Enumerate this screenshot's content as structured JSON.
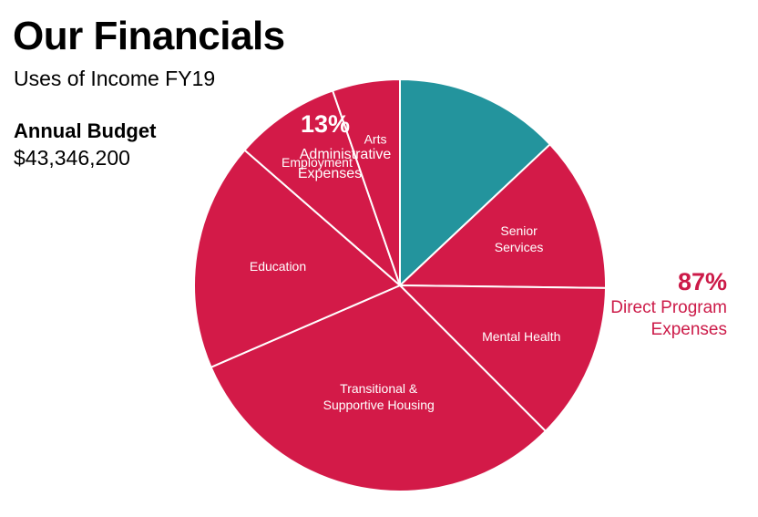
{
  "title": "Our Financials",
  "subtitle": "Uses of Income FY19",
  "budget": {
    "label": "Annual Budget",
    "value": "$43,346,200"
  },
  "direct_program": {
    "percent": "87%",
    "line1": "Direct Program",
    "line2": "Expenses",
    "color": "#d31a48"
  },
  "administrative": {
    "percent": "13%",
    "line1": "Administrative",
    "line2": "Expenses",
    "color": "#23949d"
  },
  "chart_data": {
    "type": "pie",
    "slices": [
      {
        "name": "Administrative Expenses",
        "value": 13.0,
        "color": "#23949d",
        "label_lines": []
      },
      {
        "name": "Senior Services",
        "value": 12.2,
        "color": "#d31a48",
        "label_lines": [
          "Senior",
          "Services"
        ]
      },
      {
        "name": "Mental Health",
        "value": 12.3,
        "color": "#d31a48",
        "label_lines": [
          "Mental Health"
        ]
      },
      {
        "name": "Transitional & Supportive Housing",
        "value": 31.0,
        "color": "#d31a48",
        "label_lines": [
          "Transitional &",
          "Supportive Housing"
        ]
      },
      {
        "name": "Education",
        "value": 17.9,
        "color": "#d31a48",
        "label_lines": [
          "Education"
        ]
      },
      {
        "name": "Employment",
        "value": 8.3,
        "color": "#d31a48",
        "label_lines": [
          "Employment"
        ]
      },
      {
        "name": "Arts",
        "value": 5.3,
        "color": "#d31a48",
        "label_lines": [
          "Arts"
        ]
      }
    ]
  }
}
